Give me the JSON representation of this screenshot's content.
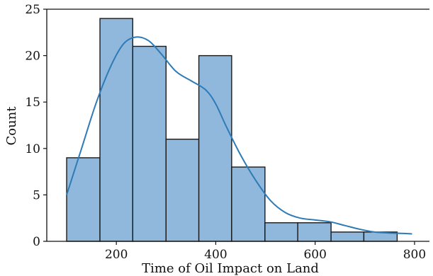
{
  "chart_data": {
    "type": "bar",
    "subtype": "histogram-with-kde",
    "xlabel": "Time of Oil Impact on Land",
    "ylabel": "Count",
    "xlim": [
      60,
      830
    ],
    "ylim": [
      0,
      25
    ],
    "x_ticks": [
      200,
      400,
      600,
      800
    ],
    "y_ticks": [
      0,
      5,
      10,
      15,
      20,
      25
    ],
    "bin_edges": [
      100,
      167,
      233,
      300,
      366,
      432,
      499,
      565,
      632,
      698,
      765
    ],
    "values": [
      9,
      24,
      21,
      11,
      20,
      8,
      2,
      2,
      1,
      1
    ],
    "kde": {
      "x": [
        100,
        130,
        160,
        190,
        215,
        240,
        265,
        290,
        320,
        350,
        380,
        400,
        420,
        450,
        480,
        510,
        540,
        570,
        600,
        630,
        660,
        690,
        720,
        750,
        780,
        795
      ],
      "y": [
        5,
        10,
        15,
        19,
        21.3,
        22,
        21.6,
        20.2,
        18.3,
        17.3,
        16.3,
        14.8,
        12.5,
        9.3,
        6.6,
        4.4,
        3.1,
        2.5,
        2.3,
        2.1,
        1.7,
        1.3,
        1.0,
        0.9,
        0.85,
        0.8
      ]
    },
    "colors": {
      "bar_fill": "#8fb8dc",
      "bar_edge": "#1a1a1a",
      "kde_line": "#2e7bb6",
      "axis": "#111111"
    },
    "grid": false
  }
}
